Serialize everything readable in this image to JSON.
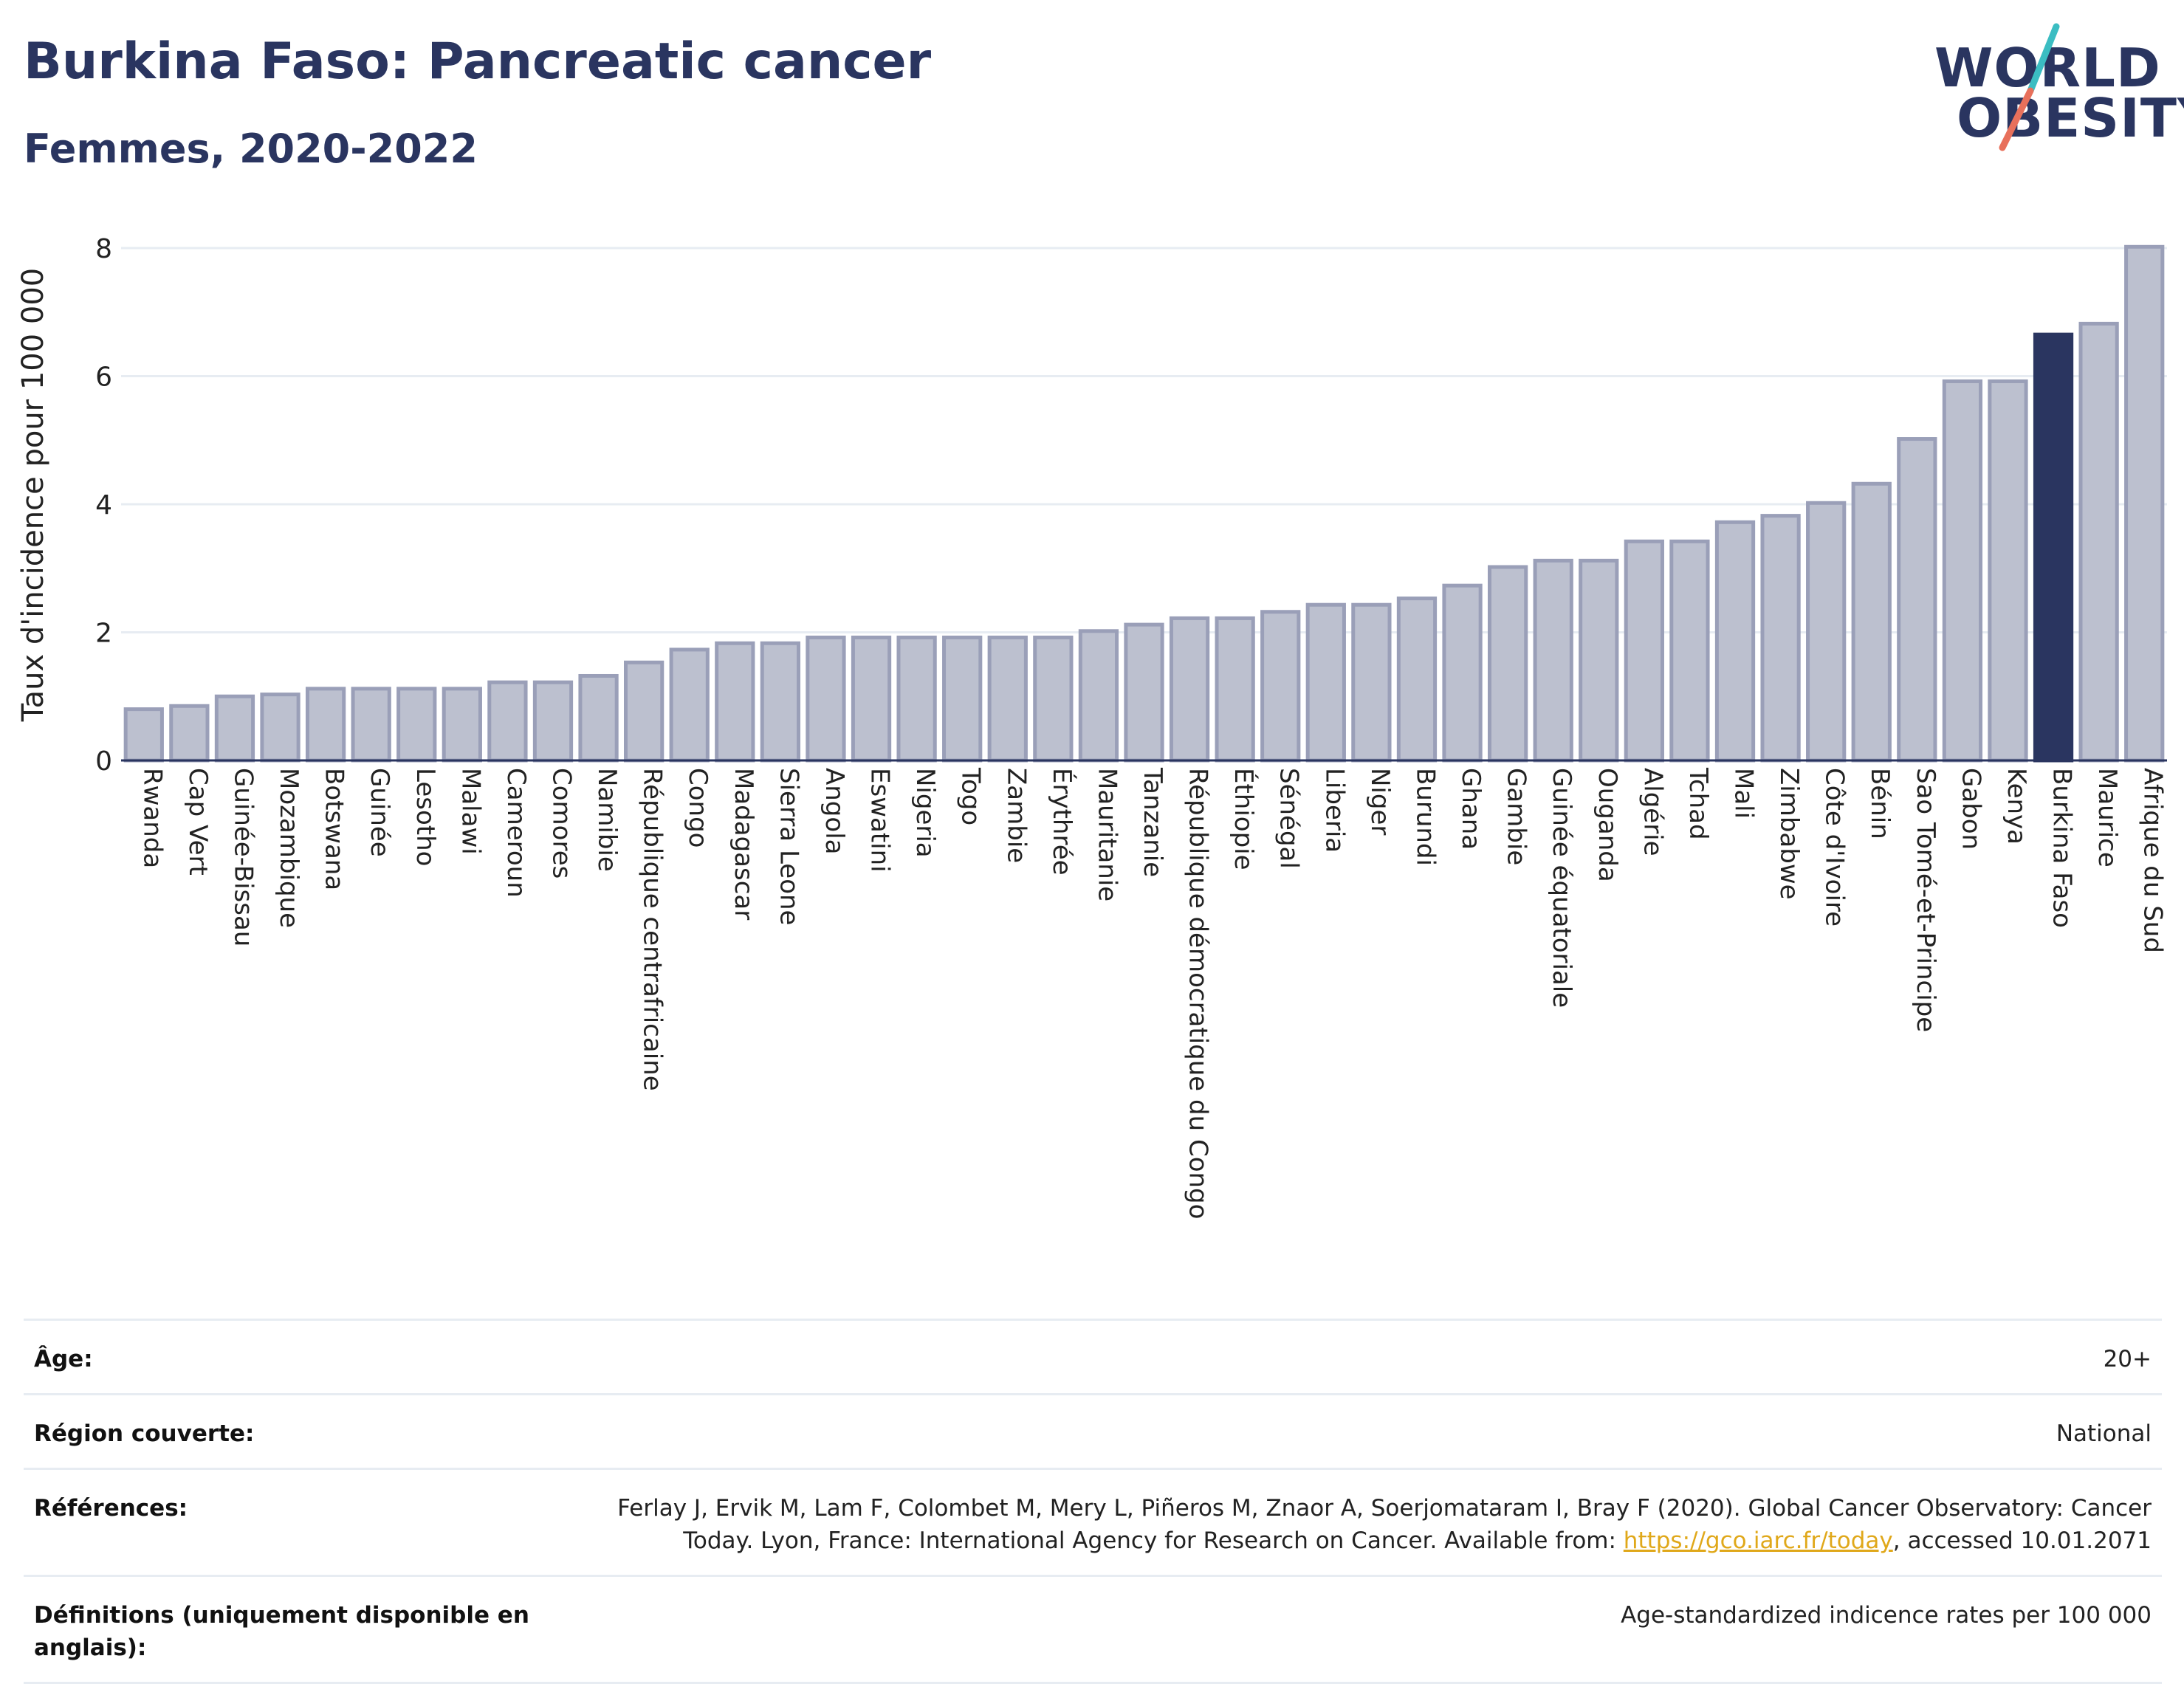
{
  "header": {
    "title": "Burkina Faso: Pancreatic cancer",
    "subtitle": "Femmes, 2020-2022"
  },
  "logo": {
    "line1": "WORLD",
    "line2": "OBESITY",
    "colors": {
      "text": "#2a3560",
      "slash_top": "#3bbdc2",
      "slash_bottom": "#e8705b"
    }
  },
  "colors": {
    "bar_fill": "#bcc0cf",
    "bar_stroke": "#9a9fb8",
    "highlight": "#2a3560",
    "grid": "#e7ecf2",
    "axis": "#2a3560"
  },
  "chart_data": {
    "type": "bar",
    "ylabel": "Taux d'incidence pour 100 000",
    "ylim": [
      0,
      8.3
    ],
    "yticks": [
      0,
      2,
      4,
      6,
      8
    ],
    "grid": true,
    "highlight": "Burkina Faso",
    "categories": [
      "Rwanda",
      "Cap Vert",
      "Guinée-Bissau",
      "Mozambique",
      "Botswana",
      "Guinée",
      "Lesotho",
      "Malawi",
      "Cameroun",
      "Comores",
      "Namibie",
      "République centrafricaine",
      "Congo",
      "Madagascar",
      "Sierra Leone",
      "Angola",
      "Eswatini",
      "Nigeria",
      "Togo",
      "Zambie",
      "Érythrée",
      "Mauritanie",
      "Tanzanie",
      "République démocratique du Congo",
      "Éthiopie",
      "Sénégal",
      "Liberia",
      "Niger",
      "Burundi",
      "Ghana",
      "Gambie",
      "Guinée équatoriale",
      "Ouganda",
      "Algérie",
      "Tchad",
      "Mali",
      "Zimbabwe",
      "Côte d'Ivoire",
      "Bénin",
      "Sao Tomé-et-Principe",
      "Gabon",
      "Kenya",
      "Burkina Faso",
      "Maurice",
      "Afrique du Sud"
    ],
    "values": [
      0.8,
      0.85,
      1.0,
      1.03,
      1.12,
      1.12,
      1.12,
      1.12,
      1.22,
      1.22,
      1.32,
      1.53,
      1.73,
      1.83,
      1.83,
      1.92,
      1.92,
      1.92,
      1.92,
      1.92,
      1.92,
      2.02,
      2.12,
      2.22,
      2.22,
      2.32,
      2.43,
      2.43,
      2.53,
      2.73,
      3.02,
      3.12,
      3.12,
      3.42,
      3.42,
      3.72,
      3.82,
      4.02,
      4.32,
      5.02,
      5.92,
      5.92,
      6.65,
      6.82,
      8.02
    ]
  },
  "meta": [
    {
      "label": "Âge:",
      "value": "20+"
    },
    {
      "label": "Région couverte:",
      "value": "National"
    },
    {
      "label": "Références:",
      "value_before": "Ferlay J, Ervik M, Lam F, Colombet M, Mery L, Piñeros M, Znaor A, Soerjomataram I, Bray F (2020). Global Cancer Observatory: Cancer Today. Lyon, France: International Agency for Research on Cancer. Available from: ",
      "link": "https://gco.iarc.fr/today",
      "value_after": ", accessed 10.01.2071"
    },
    {
      "label": "Définitions (uniquement disponible en anglais):",
      "value": "Age-standardized indicence rates per 100 000"
    }
  ]
}
